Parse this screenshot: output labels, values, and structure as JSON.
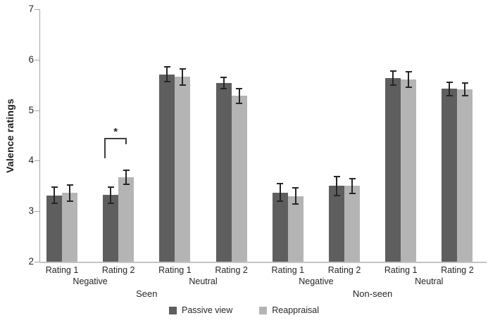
{
  "chart_data": {
    "type": "bar",
    "title": "",
    "ylabel": "Valence ratings",
    "xlabel": "",
    "ylim": [
      2,
      7
    ],
    "yticks": [
      2,
      3,
      4,
      5,
      6,
      7
    ],
    "grid": false,
    "legend_position": "bottom-center",
    "categories": [
      "Rating 1",
      "Rating 2",
      "Rating 1",
      "Rating 2",
      "Rating 1",
      "Rating 2",
      "Rating 1",
      "Rating 2"
    ],
    "group_labels": [
      {
        "label": "Negative",
        "span": [
          0,
          1
        ]
      },
      {
        "label": "Neutral",
        "span": [
          2,
          3
        ]
      },
      {
        "label": "Negative",
        "span": [
          4,
          5
        ]
      },
      {
        "label": "Neutral",
        "span": [
          6,
          7
        ]
      }
    ],
    "super_group_labels": [
      {
        "label": "Seen",
        "span": [
          0,
          3
        ]
      },
      {
        "label": "Non-seen",
        "span": [
          4,
          7
        ]
      }
    ],
    "series": [
      {
        "name": "Passive view",
        "color": "#5e5e5e",
        "values": [
          3.31,
          3.32,
          5.71,
          5.54,
          3.37,
          3.5,
          5.63,
          5.42
        ],
        "errors": [
          0.16,
          0.16,
          0.15,
          0.11,
          0.17,
          0.19,
          0.14,
          0.13
        ]
      },
      {
        "name": "Reappraisal",
        "color": "#b4b4b4",
        "values": [
          3.36,
          3.67,
          5.66,
          5.28,
          3.3,
          3.5,
          5.61,
          5.41
        ],
        "errors": [
          0.16,
          0.14,
          0.16,
          0.14,
          0.16,
          0.15,
          0.15,
          0.13
        ]
      }
    ],
    "significance": {
      "symbol": "*",
      "category_index": 1,
      "between": [
        "Passive view",
        "Reappraisal"
      ]
    },
    "colors": {
      "error_bar": "#262626",
      "axis_line": "#a6a6a6",
      "baseline": "#c3c3c3",
      "text": "#262626"
    }
  }
}
